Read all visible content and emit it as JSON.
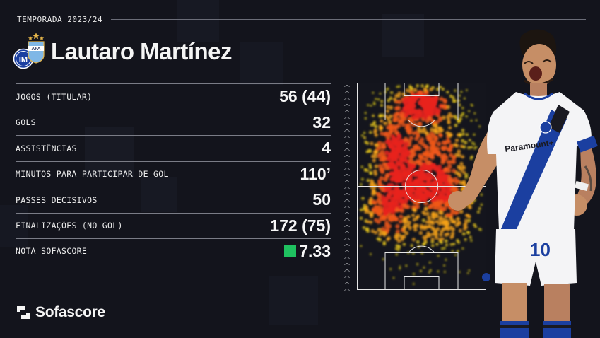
{
  "season": {
    "label": "TEMPORADA 2023/24"
  },
  "player": {
    "name": "Lautaro Martínez",
    "shirt_number": "10",
    "sponsor": "Paramount+"
  },
  "club_logos": {
    "club_text": "IM",
    "national_text": "AFA"
  },
  "stats": [
    {
      "label": "JOGOS (TITULAR)",
      "value": "56 (44)"
    },
    {
      "label": "GOLS",
      "value": "32"
    },
    {
      "label": "ASSISTÊNCIAS",
      "value": "4"
    },
    {
      "label": "MINUTOS PARA PARTICIPAR DE GOL",
      "value": "110’"
    },
    {
      "label": "PASSES DECISIVOS",
      "value": "50"
    },
    {
      "label": "FINALIZAÇÕES (NO GOL)",
      "value": "172 (75)"
    },
    {
      "label": "NOTA SOFASCORE",
      "value": "7.33"
    }
  ],
  "brand": {
    "name": "Sofascore"
  },
  "colors": {
    "background": "#13141c",
    "rating_green": "#1fc15f",
    "inter_blue": "#1b3fa0",
    "heat_red": "#e8241c",
    "heat_yellow": "#f5d21a"
  },
  "icons": {
    "direction": "chevron-up-icon",
    "brand": "sofascore-logo-icon"
  }
}
